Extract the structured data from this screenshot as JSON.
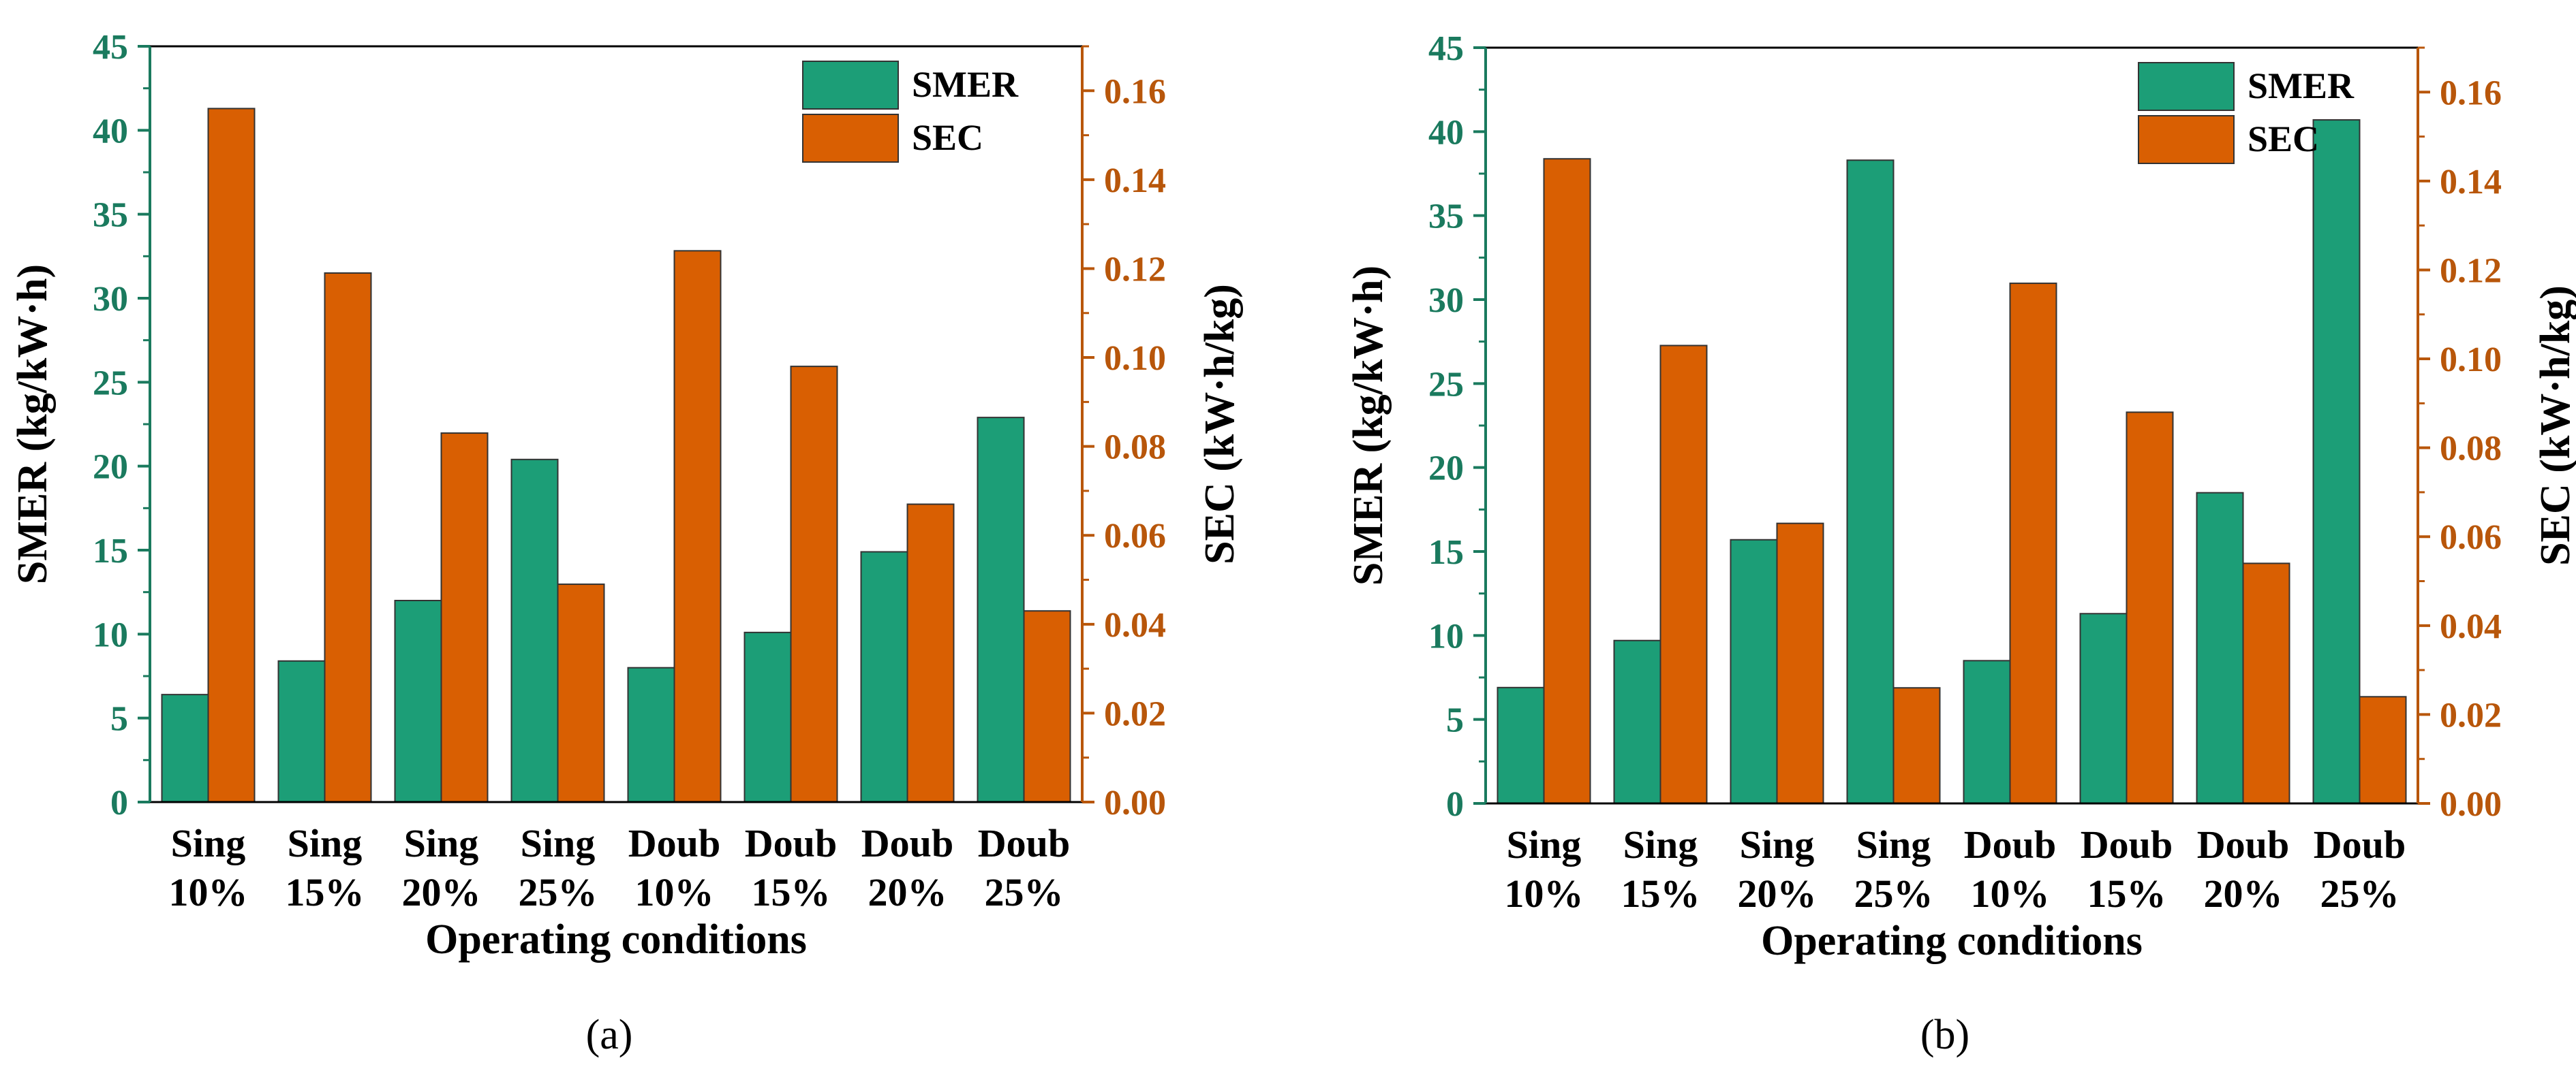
{
  "colors": {
    "smer": "#1c9e77",
    "sec": "#d95f02",
    "left_axis": "#1a7a5e",
    "right_axis": "#b8560a",
    "bar_stroke": "#333333"
  },
  "chart_data": [
    {
      "panel_label": "(a)",
      "type": "bar",
      "categories": [
        {
          "line1": "Sing",
          "line2": "10%"
        },
        {
          "line1": "Sing",
          "line2": "15%"
        },
        {
          "line1": "Sing",
          "line2": "20%"
        },
        {
          "line1": "Sing",
          "line2": "25%"
        },
        {
          "line1": "Doub",
          "line2": "10%"
        },
        {
          "line1": "Doub",
          "line2": "15%"
        },
        {
          "line1": "Doub",
          "line2": "20%"
        },
        {
          "line1": "Doub",
          "line2": "25%"
        }
      ],
      "series": [
        {
          "name": "SMER",
          "axis": "left",
          "values": [
            6.4,
            8.4,
            12.0,
            20.4,
            8.0,
            10.1,
            14.9,
            22.9
          ]
        },
        {
          "name": "SEC",
          "axis": "right",
          "values": [
            0.156,
            0.119,
            0.083,
            0.049,
            0.124,
            0.098,
            0.067,
            0.043
          ]
        }
      ],
      "xlabel": "Operating conditions",
      "ylabel_left": "SMER (kg/kW·h)",
      "ylabel_right": "SEC (kW·h/kg)",
      "ylim_left": [
        0,
        45
      ],
      "yticks_left": [
        "0",
        "5",
        "10",
        "15",
        "20",
        "25",
        "30",
        "35",
        "40",
        "45"
      ],
      "ylim_right": [
        0,
        0.17
      ],
      "yticks_right": [
        "0.00",
        "0.02",
        "0.04",
        "0.06",
        "0.08",
        "0.10",
        "0.12",
        "0.14",
        "0.16"
      ],
      "legend": [
        "SMER",
        "SEC"
      ],
      "legend_position": "top-right"
    },
    {
      "panel_label": "(b)",
      "type": "bar",
      "categories": [
        {
          "line1": "Sing",
          "line2": "10%"
        },
        {
          "line1": "Sing",
          "line2": "15%"
        },
        {
          "line1": "Sing",
          "line2": "20%"
        },
        {
          "line1": "Sing",
          "line2": "25%"
        },
        {
          "line1": "Doub",
          "line2": "10%"
        },
        {
          "line1": "Doub",
          "line2": "15%"
        },
        {
          "line1": "Doub",
          "line2": "20%"
        },
        {
          "line1": "Doub",
          "line2": "25%"
        }
      ],
      "series": [
        {
          "name": "SMER",
          "axis": "left",
          "values": [
            6.9,
            9.7,
            15.7,
            38.3,
            8.5,
            11.3,
            18.5,
            40.7
          ]
        },
        {
          "name": "SEC",
          "axis": "right",
          "values": [
            0.145,
            0.103,
            0.063,
            0.026,
            0.117,
            0.088,
            0.054,
            0.024
          ]
        }
      ],
      "xlabel": "Operating conditions",
      "ylabel_left": "SMER (kg/kW·h)",
      "ylabel_right": "SEC (kW·h/kg)",
      "ylim_left": [
        0,
        45
      ],
      "yticks_left": [
        "0",
        "5",
        "10",
        "15",
        "20",
        "25",
        "30",
        "35",
        "40",
        "45"
      ],
      "ylim_right": [
        0,
        0.17
      ],
      "yticks_right": [
        "0.00",
        "0.02",
        "0.04",
        "0.06",
        "0.08",
        "0.10",
        "0.12",
        "0.14",
        "0.16"
      ],
      "legend": [
        "SMER",
        "SEC"
      ],
      "legend_position": "top-right"
    }
  ]
}
